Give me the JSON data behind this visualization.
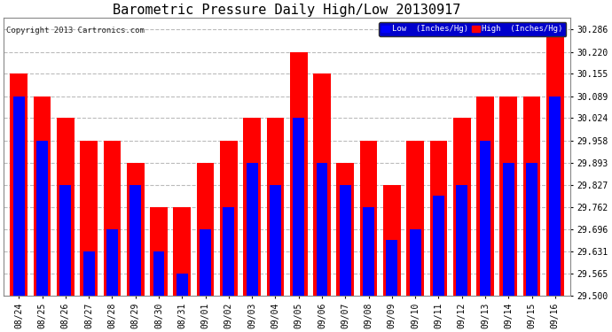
{
  "title": "Barometric Pressure Daily High/Low 20130917",
  "copyright": "Copyright 2013 Cartronics.com",
  "legend_low": "Low  (Inches/Hg)",
  "legend_high": "High  (Inches/Hg)",
  "categories": [
    "08/24",
    "08/25",
    "08/26",
    "08/27",
    "08/28",
    "08/29",
    "08/30",
    "08/31",
    "09/01",
    "09/02",
    "09/03",
    "09/04",
    "09/05",
    "09/06",
    "09/07",
    "09/08",
    "09/09",
    "09/10",
    "09/11",
    "09/12",
    "09/13",
    "09/14",
    "09/15",
    "09/16"
  ],
  "low_values": [
    30.089,
    29.958,
    29.827,
    29.631,
    29.696,
    29.827,
    29.631,
    29.565,
    29.696,
    29.762,
    29.893,
    29.827,
    30.024,
    29.893,
    29.827,
    29.762,
    29.665,
    29.696,
    29.795,
    29.827,
    29.958,
    29.893,
    29.893,
    30.089
  ],
  "high_values": [
    30.155,
    30.089,
    30.024,
    29.958,
    29.958,
    29.893,
    29.762,
    29.762,
    29.893,
    29.958,
    30.024,
    30.024,
    30.22,
    30.155,
    29.893,
    29.958,
    29.827,
    29.958,
    29.958,
    30.024,
    30.089,
    30.089,
    30.089,
    30.286
  ],
  "low_color": "#0000FF",
  "high_color": "#FF0000",
  "bg_color": "#FFFFFF",
  "ylim_min": 29.5,
  "ylim_max": 30.32,
  "yticks": [
    29.5,
    29.565,
    29.631,
    29.696,
    29.762,
    29.827,
    29.893,
    29.958,
    30.024,
    30.089,
    30.155,
    30.22,
    30.286
  ],
  "grid_color": "#BBBBBB",
  "title_fontsize": 11,
  "tick_fontsize": 7,
  "bar_width": 0.75,
  "legend_bg": "#0000CC"
}
